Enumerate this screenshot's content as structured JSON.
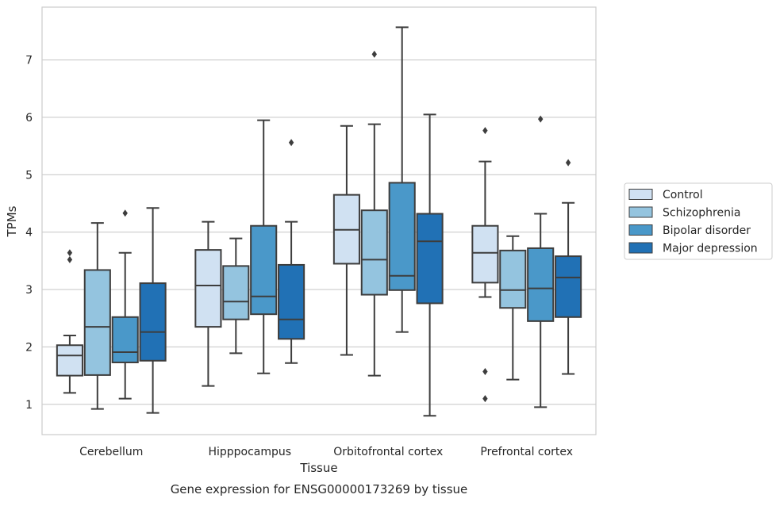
{
  "chart_data": {
    "type": "box",
    "title": "",
    "caption": "Gene expression for ENSG00000173269 by tissue",
    "xlabel": "Tissue",
    "ylabel": "TPMs",
    "ylim": [
      0.5,
      7.95
    ],
    "yticks": [
      1,
      2,
      3,
      4,
      5,
      6,
      7
    ],
    "grid": "horizontal",
    "legend_position": "right",
    "categories": [
      "Cerebellum",
      "Hipppocampus",
      "Orbitofrontal cortex",
      "Prefrontal cortex"
    ],
    "series": [
      {
        "name": "Control",
        "color": "#d0e1f2",
        "boxes": [
          {
            "whislo": 1.2,
            "q1": 1.5,
            "med": 1.85,
            "q3": 2.03,
            "whishi": 2.2,
            "fliers": [
              3.52,
              3.64
            ]
          },
          {
            "whislo": 1.32,
            "q1": 2.35,
            "med": 3.07,
            "q3": 3.69,
            "whishi": 4.18,
            "fliers": []
          },
          {
            "whislo": 1.86,
            "q1": 3.45,
            "med": 4.04,
            "q3": 4.65,
            "whishi": 5.85,
            "fliers": []
          },
          {
            "whislo": 2.87,
            "q1": 3.12,
            "med": 3.64,
            "q3": 4.11,
            "whishi": 5.23,
            "fliers": [
              5.77,
              1.57,
              1.1
            ]
          }
        ]
      },
      {
        "name": "Schizophrenia",
        "color": "#94c4df",
        "boxes": [
          {
            "whislo": 0.92,
            "q1": 1.51,
            "med": 2.35,
            "q3": 3.34,
            "whishi": 4.16,
            "fliers": []
          },
          {
            "whislo": 1.89,
            "q1": 2.48,
            "med": 2.79,
            "q3": 3.41,
            "whishi": 3.89,
            "fliers": []
          },
          {
            "whislo": 1.5,
            "q1": 2.91,
            "med": 3.52,
            "q3": 4.38,
            "whishi": 5.88,
            "fliers": [
              7.1
            ]
          },
          {
            "whislo": 1.43,
            "q1": 2.68,
            "med": 2.99,
            "q3": 3.68,
            "whishi": 3.93,
            "fliers": []
          }
        ]
      },
      {
        "name": "Bipolar disorder",
        "color": "#4a98c9",
        "boxes": [
          {
            "whislo": 1.1,
            "q1": 1.73,
            "med": 1.91,
            "q3": 2.52,
            "whishi": 3.64,
            "fliers": [
              4.33
            ]
          },
          {
            "whislo": 1.54,
            "q1": 2.57,
            "med": 2.88,
            "q3": 4.11,
            "whishi": 5.95,
            "fliers": []
          },
          {
            "whislo": 2.26,
            "q1": 2.99,
            "med": 3.24,
            "q3": 4.86,
            "whishi": 7.57,
            "fliers": []
          },
          {
            "whislo": 0.95,
            "q1": 2.45,
            "med": 3.02,
            "q3": 3.72,
            "whishi": 4.32,
            "fliers": [
              5.97
            ]
          }
        ]
      },
      {
        "name": "Major depression",
        "color": "#2171b5",
        "boxes": [
          {
            "whislo": 0.85,
            "q1": 1.76,
            "med": 2.26,
            "q3": 3.11,
            "whishi": 4.42,
            "fliers": []
          },
          {
            "whislo": 1.72,
            "q1": 2.14,
            "med": 2.48,
            "q3": 3.43,
            "whishi": 4.18,
            "fliers": [
              5.56
            ]
          },
          {
            "whislo": 0.8,
            "q1": 2.76,
            "med": 3.84,
            "q3": 4.32,
            "whishi": 6.05,
            "fliers": []
          },
          {
            "whislo": 1.53,
            "q1": 2.52,
            "med": 3.21,
            "q3": 3.58,
            "whishi": 4.51,
            "fliers": [
              5.21
            ]
          }
        ]
      }
    ]
  }
}
